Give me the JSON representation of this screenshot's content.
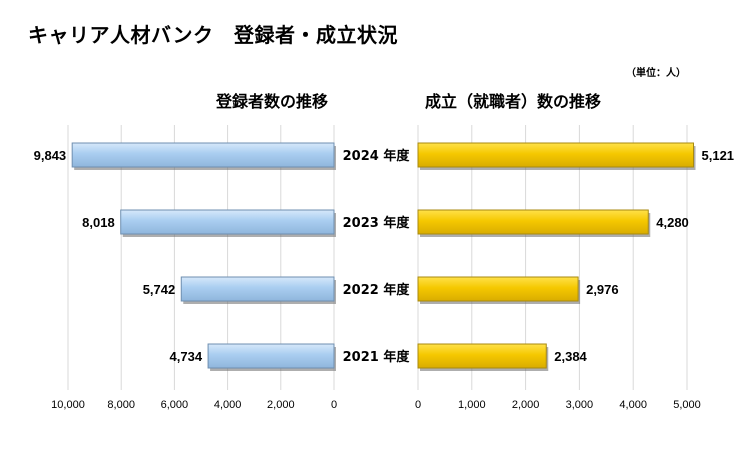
{
  "title": "キャリア人材バンク　登録者・成立状況",
  "unit_note": "（単位：人）",
  "colors": {
    "left_bar": "#a9cdf0",
    "left_bar_edge": "#6f8fb0",
    "right_bar": "#f5c800",
    "right_bar_edge": "#a88a10",
    "grid": "#d9d9d9"
  },
  "chart_data": [
    {
      "type": "bar",
      "orientation": "horizontal",
      "direction": "right-to-left",
      "title": "登録者数の推移",
      "categories": [
        "2024 年度",
        "2023 年度",
        "2022 年度",
        "2021 年度"
      ],
      "values": [
        9843,
        8018,
        5742,
        4734
      ],
      "value_labels": [
        "9,843",
        "8,018",
        "5,742",
        "4,734"
      ],
      "xlim": [
        0,
        10000
      ],
      "ticks": [
        10000,
        8000,
        6000,
        4000,
        2000,
        0
      ],
      "tick_labels": [
        "10,000",
        "8,000",
        "6,000",
        "4,000",
        "2,000",
        "0"
      ],
      "grid": true
    },
    {
      "type": "bar",
      "orientation": "horizontal",
      "direction": "left-to-right",
      "title": "成立（就職者）数の推移",
      "categories": [
        "2024 年度",
        "2023 年度",
        "2022 年度",
        "2021 年度"
      ],
      "values": [
        5121,
        4280,
        2976,
        2384
      ],
      "value_labels": [
        "5,121",
        "4,280",
        "2,976",
        "2,384"
      ],
      "xlim": [
        0,
        5000
      ],
      "ticks": [
        0,
        1000,
        2000,
        3000,
        4000,
        5000
      ],
      "tick_labels": [
        "0",
        "1,000",
        "2,000",
        "3,000",
        "4,000",
        "5,000"
      ],
      "grid": true
    }
  ]
}
